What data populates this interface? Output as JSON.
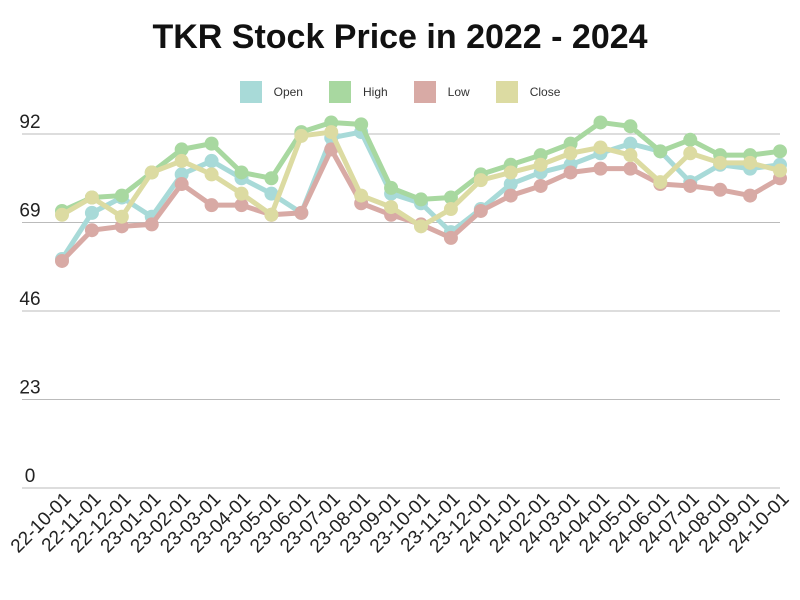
{
  "chart_data": {
    "type": "line",
    "title": "TKR Stock Price in 2022 - 2024",
    "xlabel": "",
    "ylabel": "",
    "ylim": [
      0,
      92
    ],
    "y_ticks": [
      "0",
      "23",
      "46",
      "69",
      "92"
    ],
    "grid": "horizontal",
    "legend_position": "top",
    "categories": [
      "22-10-01",
      "22-11-01",
      "22-12-01",
      "23-01-01",
      "23-02-01",
      "23-03-01",
      "23-04-01",
      "23-05-01",
      "23-06-01",
      "23-07-01",
      "23-08-01",
      "23-09-01",
      "23-10-01",
      "23-11-01",
      "23-12-01",
      "24-01-01",
      "24-02-01",
      "24-03-01",
      "24-04-01",
      "24-05-01",
      "24-06-01",
      "24-07-01",
      "24-08-01",
      "24-09-01",
      "24-10-01"
    ],
    "series": [
      {
        "name": "Open",
        "color": "#a8dad8",
        "values": [
          59.5,
          71.5,
          75.5,
          70.5,
          81.5,
          85,
          80.5,
          76.5,
          71.5,
          91,
          92.5,
          76.5,
          74,
          66.5,
          72.5,
          79,
          82,
          84,
          87,
          89.5,
          87.5,
          79.5,
          84,
          83,
          84
        ]
      },
      {
        "name": "High",
        "color": "#a8d8a0",
        "values": [
          72,
          75.5,
          76,
          82,
          88,
          89.5,
          82,
          80.5,
          92.5,
          95,
          94.5,
          78,
          75,
          75.5,
          81.5,
          84,
          86.5,
          89.5,
          95,
          94,
          87.5,
          90.5,
          86.5,
          86.5,
          87.5
        ]
      },
      {
        "name": "Low",
        "color": "#d8aaa5",
        "values": [
          59,
          67,
          68,
          68.5,
          79,
          73.5,
          73.5,
          71,
          71.5,
          88,
          74,
          71,
          68.5,
          65,
          72,
          76,
          78.5,
          82,
          83,
          83,
          79,
          78.5,
          77.5,
          76,
          80.5
        ]
      },
      {
        "name": "Close",
        "color": "#dcdba2",
        "values": [
          71,
          75.5,
          70.5,
          82,
          85,
          81.5,
          76.5,
          71,
          91.5,
          92.5,
          76,
          73,
          68,
          72.5,
          80,
          82,
          84,
          87,
          88.5,
          86.5,
          79.5,
          87,
          84.5,
          84.5,
          82.5
        ]
      }
    ]
  }
}
